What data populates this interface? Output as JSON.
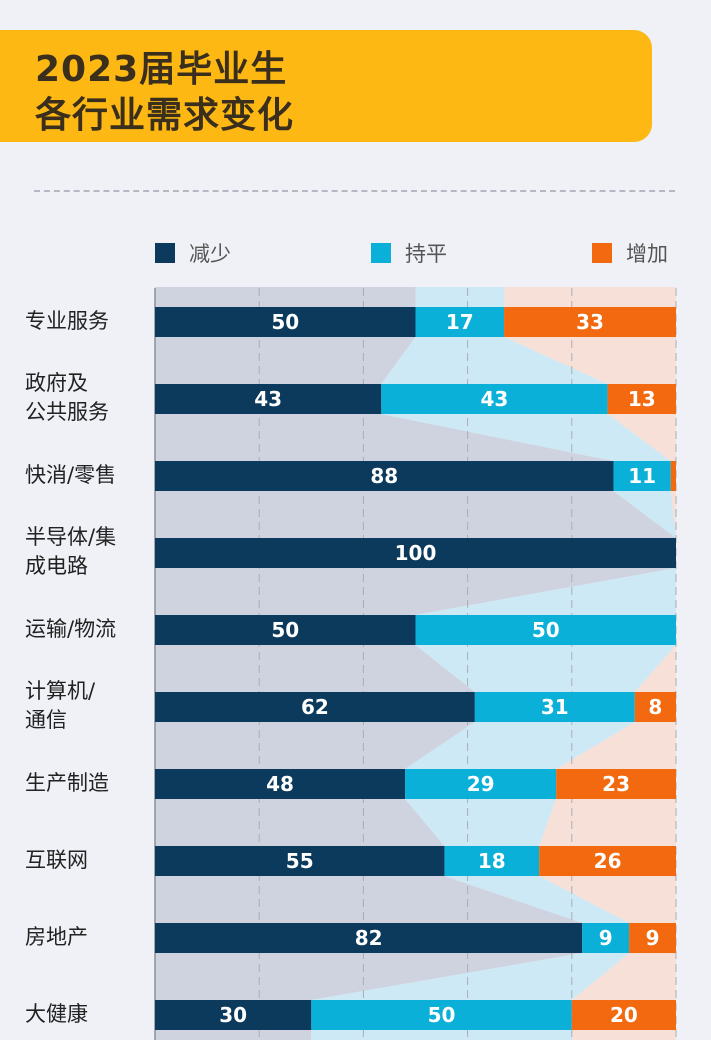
{
  "title": [
    "2023届毕业生",
    "各行业需求变化"
  ],
  "colors": {
    "decrease": "#0b3a5c",
    "flat": "#0bb0d8",
    "increase": "#f2690f",
    "decrease_light": "#cfd3df",
    "flat_light": "#cde9f5",
    "increase_light": "#f6e0d8",
    "title_bg": "#fdb813"
  },
  "chart_data": {
    "type": "bar",
    "stacked": true,
    "orientation": "horizontal",
    "categories": [
      "专业服务",
      "政府及\n公共服务",
      "快消/零售",
      "半导体/集\n成电路",
      "运输/物流",
      "计算机/\n通信",
      "生产制造",
      "互联网",
      "房地产",
      "大健康"
    ],
    "series": [
      {
        "name": "减少",
        "values": [
          50,
          43,
          88,
          100,
          50,
          62,
          48,
          55,
          82,
          30
        ]
      },
      {
        "name": "持平",
        "values": [
          17,
          43,
          11,
          0,
          50,
          31,
          29,
          18,
          9,
          50
        ]
      },
      {
        "name": "增加",
        "values": [
          33,
          13,
          1,
          0,
          0,
          8,
          23,
          26,
          9,
          20
        ]
      }
    ],
    "labels": [
      [
        "50",
        "17",
        "33"
      ],
      [
        "43",
        "43",
        "13"
      ],
      [
        "88",
        "11",
        ""
      ],
      [
        "100",
        "",
        ""
      ],
      [
        "50",
        "50",
        ""
      ],
      [
        "62",
        "31",
        "8"
      ],
      [
        "48",
        "29",
        "23"
      ],
      [
        "55",
        "18",
        "26"
      ],
      [
        "82",
        "9",
        "9"
      ],
      [
        "30",
        "50",
        "20"
      ]
    ],
    "xlim": [
      0,
      100
    ],
    "grid": true,
    "legend": "top"
  }
}
